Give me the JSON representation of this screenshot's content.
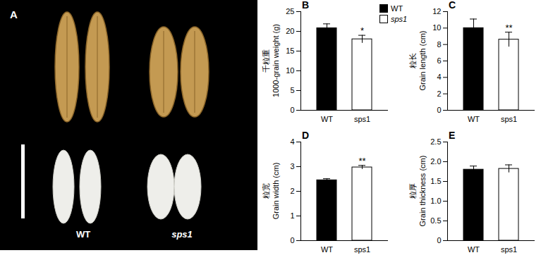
{
  "image_panel": {
    "panel": "A",
    "captions": [
      "WT",
      "sps1"
    ]
  },
  "chart_data": [
    {
      "type": "bar",
      "panel": "B",
      "ylabel": [
        "千粒重",
        "1000-grain weight (g)"
      ],
      "categories": [
        "WT",
        "sps1"
      ],
      "values": [
        20.8,
        18.0
      ],
      "errors": [
        1.1,
        1.0
      ],
      "colors": [
        "#000000",
        "#ffffff"
      ],
      "annotations": [
        null,
        "*"
      ],
      "ylim": [
        0,
        25
      ],
      "yticks": [
        0,
        5,
        10,
        15,
        20,
        25
      ],
      "legend": "top-right"
    },
    {
      "type": "bar",
      "panel": "C",
      "ylabel": [
        "粒长",
        "Grain length (cm)"
      ],
      "categories": [
        "WT",
        "sps1"
      ],
      "values": [
        10.0,
        8.6
      ],
      "errors": [
        1.1,
        0.9
      ],
      "colors": [
        "#000000",
        "#ffffff"
      ],
      "annotations": [
        null,
        "**"
      ],
      "ylim": [
        0,
        12
      ],
      "yticks": [
        0,
        2,
        4,
        6,
        8,
        10,
        12
      ]
    },
    {
      "type": "bar",
      "panel": "D",
      "ylabel": [
        "粒宽",
        "Grain width (cm)"
      ],
      "categories": [
        "WT",
        "sps1"
      ],
      "values": [
        2.45,
        2.97
      ],
      "errors": [
        0.06,
        0.08
      ],
      "colors": [
        "#000000",
        "#ffffff"
      ],
      "annotations": [
        null,
        "**"
      ],
      "ylim": [
        0,
        4
      ],
      "yticks": [
        0,
        1,
        2,
        3,
        4
      ]
    },
    {
      "type": "bar",
      "panel": "E",
      "ylabel": [
        "粒厚",
        "Grain thickness (cm)"
      ],
      "categories": [
        "WT",
        "sps1"
      ],
      "values": [
        1.8,
        1.82
      ],
      "errors": [
        0.09,
        0.1
      ],
      "colors": [
        "#000000",
        "#ffffff"
      ],
      "annotations": [
        null,
        null
      ],
      "ylim": [
        0,
        2.5
      ],
      "yticks": [
        0,
        0.5,
        {
          "value": 1,
          "label": "1.0"
        },
        1.5,
        {
          "value": 2,
          "label": "2.0"
        },
        2.5
      ]
    }
  ]
}
